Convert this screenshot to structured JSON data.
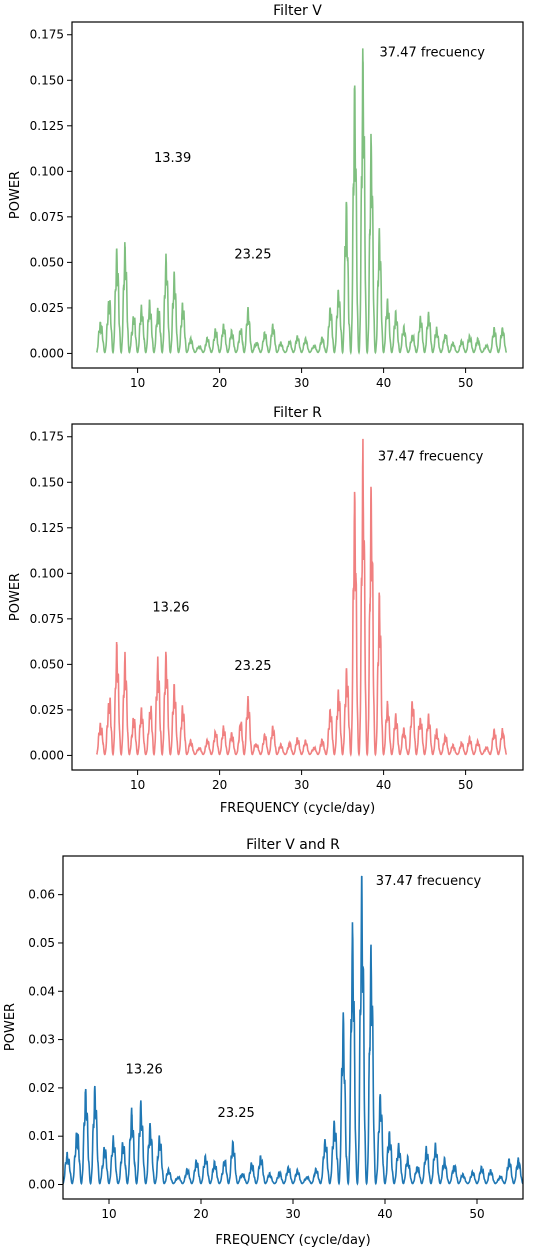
{
  "chart_data": [
    {
      "type": "line",
      "title": "Filter V",
      "xlabel": "",
      "ylabel": "POWER",
      "xlim": [
        2,
        57
      ],
      "ylim": [
        -0.008,
        0.182
      ],
      "xticks": [
        10,
        20,
        30,
        40,
        50
      ],
      "yticks": [
        0.0,
        0.025,
        0.05,
        0.075,
        0.1,
        0.125,
        0.15,
        0.175
      ],
      "ytick_labels": [
        "0.000",
        "0.025",
        "0.050",
        "0.075",
        "0.100",
        "0.125",
        "0.150",
        "0.175"
      ],
      "color": "#7fbf7f",
      "grid": false,
      "series": [
        {
          "x_range": [
            5,
            55
          ],
          "peaks": [
            {
              "x": 7.3,
              "y": 0.063
            },
            {
              "x": 8.3,
              "y": 0.066
            },
            {
              "x": 11.2,
              "y": 0.033
            },
            {
              "x": 13.39,
              "y": 0.057
            },
            {
              "x": 14.3,
              "y": 0.048
            },
            {
              "x": 23.25,
              "y": 0.027
            },
            {
              "x": 35.3,
              "y": 0.098
            },
            {
              "x": 36.4,
              "y": 0.16
            },
            {
              "x": 37.47,
              "y": 0.173
            },
            {
              "x": 38.5,
              "y": 0.125
            },
            {
              "x": 39.5,
              "y": 0.072
            }
          ]
        }
      ],
      "annotations": [
        {
          "text": "37.47 frecuency",
          "x": 39.5,
          "y": 0.163
        },
        {
          "text": "13.39",
          "x": 12.0,
          "y": 0.105
        },
        {
          "text": "23.25",
          "x": 21.8,
          "y": 0.052
        }
      ]
    },
    {
      "type": "line",
      "title": "Filter R",
      "xlabel": "FREQUENCY (cycle/day)",
      "ylabel": "POWER",
      "xlim": [
        2,
        57
      ],
      "ylim": [
        -0.008,
        0.182
      ],
      "xticks": [
        10,
        20,
        30,
        40,
        50
      ],
      "yticks": [
        0.0,
        0.025,
        0.05,
        0.075,
        0.1,
        0.125,
        0.15,
        0.175
      ],
      "ytick_labels": [
        "0.000",
        "0.025",
        "0.050",
        "0.075",
        "0.100",
        "0.125",
        "0.150",
        "0.175"
      ],
      "color": "#f08080",
      "grid": false,
      "series": [
        {
          "x_range": [
            5,
            55
          ],
          "peaks": [
            {
              "x": 7.3,
              "y": 0.067
            },
            {
              "x": 8.3,
              "y": 0.06
            },
            {
              "x": 12.3,
              "y": 0.058
            },
            {
              "x": 13.26,
              "y": 0.063
            },
            {
              "x": 14.3,
              "y": 0.042
            },
            {
              "x": 23.25,
              "y": 0.036
            },
            {
              "x": 36.4,
              "y": 0.157
            },
            {
              "x": 37.47,
              "y": 0.176
            },
            {
              "x": 38.5,
              "y": 0.155
            },
            {
              "x": 39.5,
              "y": 0.093
            },
            {
              "x": 43.8,
              "y": 0.035
            }
          ]
        }
      ],
      "annotations": [
        {
          "text": "37.47 frecuency",
          "x": 39.3,
          "y": 0.162
        },
        {
          "text": "13.26",
          "x": 11.8,
          "y": 0.079
        },
        {
          "text": "23.25",
          "x": 21.8,
          "y": 0.047
        }
      ]
    },
    {
      "type": "line",
      "title": "Filter V and R",
      "xlabel": "FREQUENCY (cycle/day)",
      "ylabel": "POWER",
      "xlim": [
        5,
        55
      ],
      "ylim": [
        -0.003,
        0.068
      ],
      "xticks": [
        10,
        20,
        30,
        40,
        50
      ],
      "yticks": [
        0.0,
        0.01,
        0.02,
        0.03,
        0.04,
        0.05,
        0.06
      ],
      "ytick_labels": [
        "0.00",
        "0.01",
        "0.02",
        "0.03",
        "0.04",
        "0.05",
        "0.06"
      ],
      "color": "#1f77b4",
      "grid": false,
      "series": [
        {
          "x_range": [
            5,
            55
          ],
          "peaks": [
            {
              "x": 7.3,
              "y": 0.022
            },
            {
              "x": 8.3,
              "y": 0.022
            },
            {
              "x": 12.3,
              "y": 0.017
            },
            {
              "x": 13.26,
              "y": 0.019
            },
            {
              "x": 14.3,
              "y": 0.014
            },
            {
              "x": 23.25,
              "y": 0.01
            },
            {
              "x": 35.3,
              "y": 0.04
            },
            {
              "x": 36.4,
              "y": 0.058
            },
            {
              "x": 37.47,
              "y": 0.066
            },
            {
              "x": 38.5,
              "y": 0.052
            },
            {
              "x": 39.5,
              "y": 0.02
            }
          ]
        }
      ],
      "annotations": [
        {
          "text": "37.47 frecuency",
          "x": 39.0,
          "y": 0.062
        },
        {
          "text": "13.26",
          "x": 11.8,
          "y": 0.023
        },
        {
          "text": "23.25",
          "x": 21.8,
          "y": 0.014
        }
      ]
    }
  ]
}
